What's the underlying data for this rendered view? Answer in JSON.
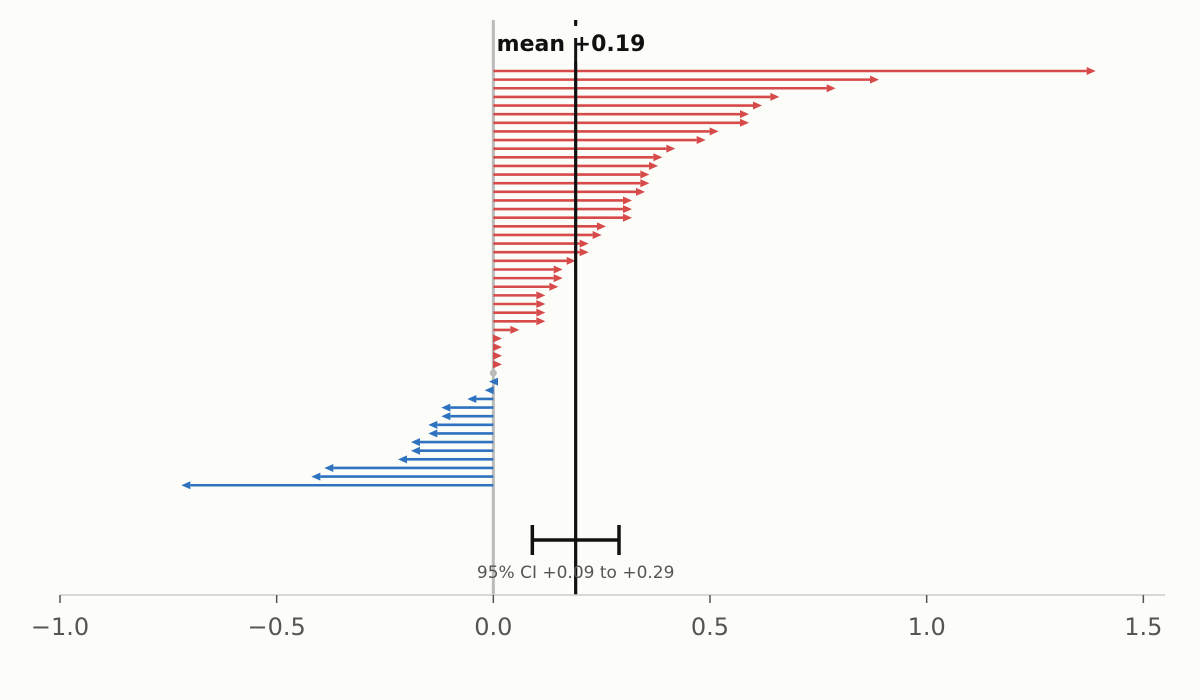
{
  "chart_data": {
    "type": "bar",
    "orientation": "horizontal-arrows",
    "values": [
      1.39,
      0.89,
      0.79,
      0.66,
      0.62,
      0.59,
      0.59,
      0.52,
      0.49,
      0.42,
      0.39,
      0.38,
      0.36,
      0.36,
      0.35,
      0.32,
      0.32,
      0.32,
      0.26,
      0.25,
      0.22,
      0.22,
      0.19,
      0.16,
      0.16,
      0.15,
      0.12,
      0.12,
      0.12,
      0.12,
      0.06,
      0.02,
      0.02,
      0.02,
      0.02,
      0.0,
      -0.01,
      -0.02,
      -0.06,
      -0.12,
      -0.12,
      -0.15,
      -0.15,
      -0.19,
      -0.19,
      -0.22,
      -0.39,
      -0.42,
      -0.72
    ],
    "xlim": [
      -1.0,
      1.55
    ],
    "xticks": [
      {
        "value": -1.0,
        "label": "−1.0"
      },
      {
        "value": -0.5,
        "label": "−0.5"
      },
      {
        "value": 0.0,
        "label": "0.0"
      },
      {
        "value": 0.5,
        "label": "0.5"
      },
      {
        "value": 1.0,
        "label": "1.0"
      },
      {
        "value": 1.5,
        "label": "1.5"
      }
    ],
    "mean": 0.19,
    "mean_label": "mean +0.19",
    "ci": [
      0.09,
      0.29
    ],
    "ci_label": "95% CI  +0.09 to +0.29",
    "colors": {
      "positive": "#d64a4a",
      "negative": "#2f72c0",
      "zero": "#bbbbbb",
      "mean": "#111111",
      "axis": "#cccccc",
      "baseline": "#bbbbbb"
    },
    "grid": false
  }
}
